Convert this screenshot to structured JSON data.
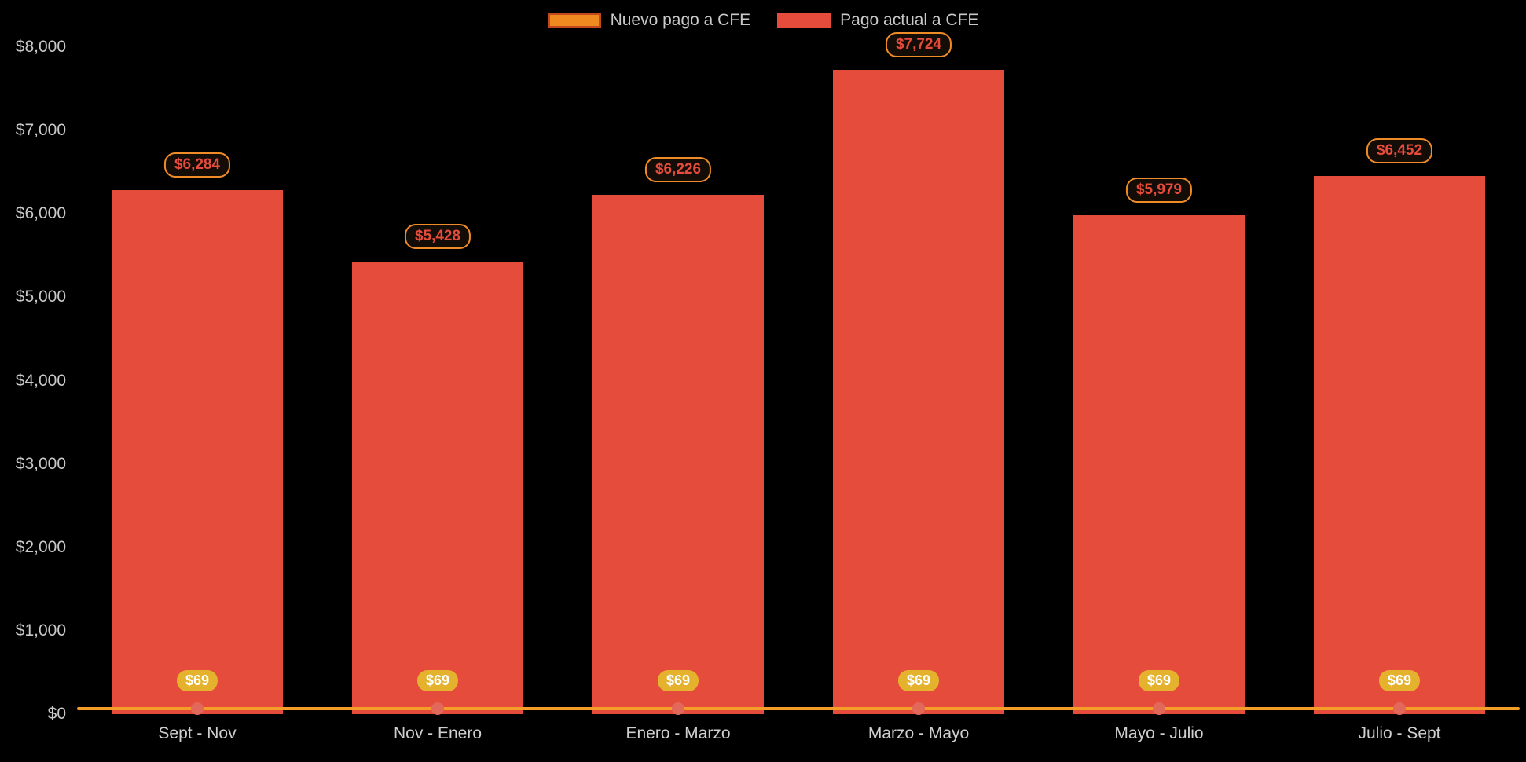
{
  "chart_data": {
    "type": "combo-bar-line",
    "background": "#000000",
    "axis_text_color": "#c9c9c9",
    "legend_position": "top",
    "ylim": [
      0,
      8000
    ],
    "ytick_values": [
      0,
      1000,
      2000,
      3000,
      4000,
      5000,
      6000,
      7000,
      8000
    ],
    "ytick_labels": [
      "$0",
      "$1,000",
      "$2,000",
      "$3,000",
      "$4,000",
      "$5,000",
      "$6,000",
      "$7,000",
      "$8,000"
    ],
    "categories": [
      "Sept - Nov",
      "Nov - Enero",
      "Enero - Marzo",
      "Marzo - Mayo",
      "Mayo - Julio",
      "Julio - Sept"
    ],
    "series": [
      {
        "name": "Nuevo pago a CFE",
        "type": "line",
        "values": [
          69,
          69,
          69,
          69,
          69,
          69
        ],
        "labels": [
          "$69",
          "$69",
          "$69",
          "$69",
          "$69",
          "$69"
        ],
        "color": "#f59e27",
        "marker_color": "#e2685b",
        "label_bg": "#e5b22e",
        "label_text_color": "#ffffff",
        "legend_swatch_fill": "#ee8a1f",
        "legend_swatch_border": "#c2491d"
      },
      {
        "name": "Pago actual a CFE",
        "type": "bar",
        "values": [
          6284,
          5428,
          6226,
          7724,
          5979,
          6452
        ],
        "labels": [
          "$6,284",
          "$5,428",
          "$6,226",
          "$7,724",
          "$5,979",
          "$6,452"
        ],
        "color": "#e64c3b",
        "label_bg": "#140c06",
        "label_border": "#f08c28",
        "label_text_color": "#e64c3b",
        "legend_swatch_fill": "#e64c3b",
        "legend_swatch_border": "#e64c3b"
      }
    ]
  }
}
